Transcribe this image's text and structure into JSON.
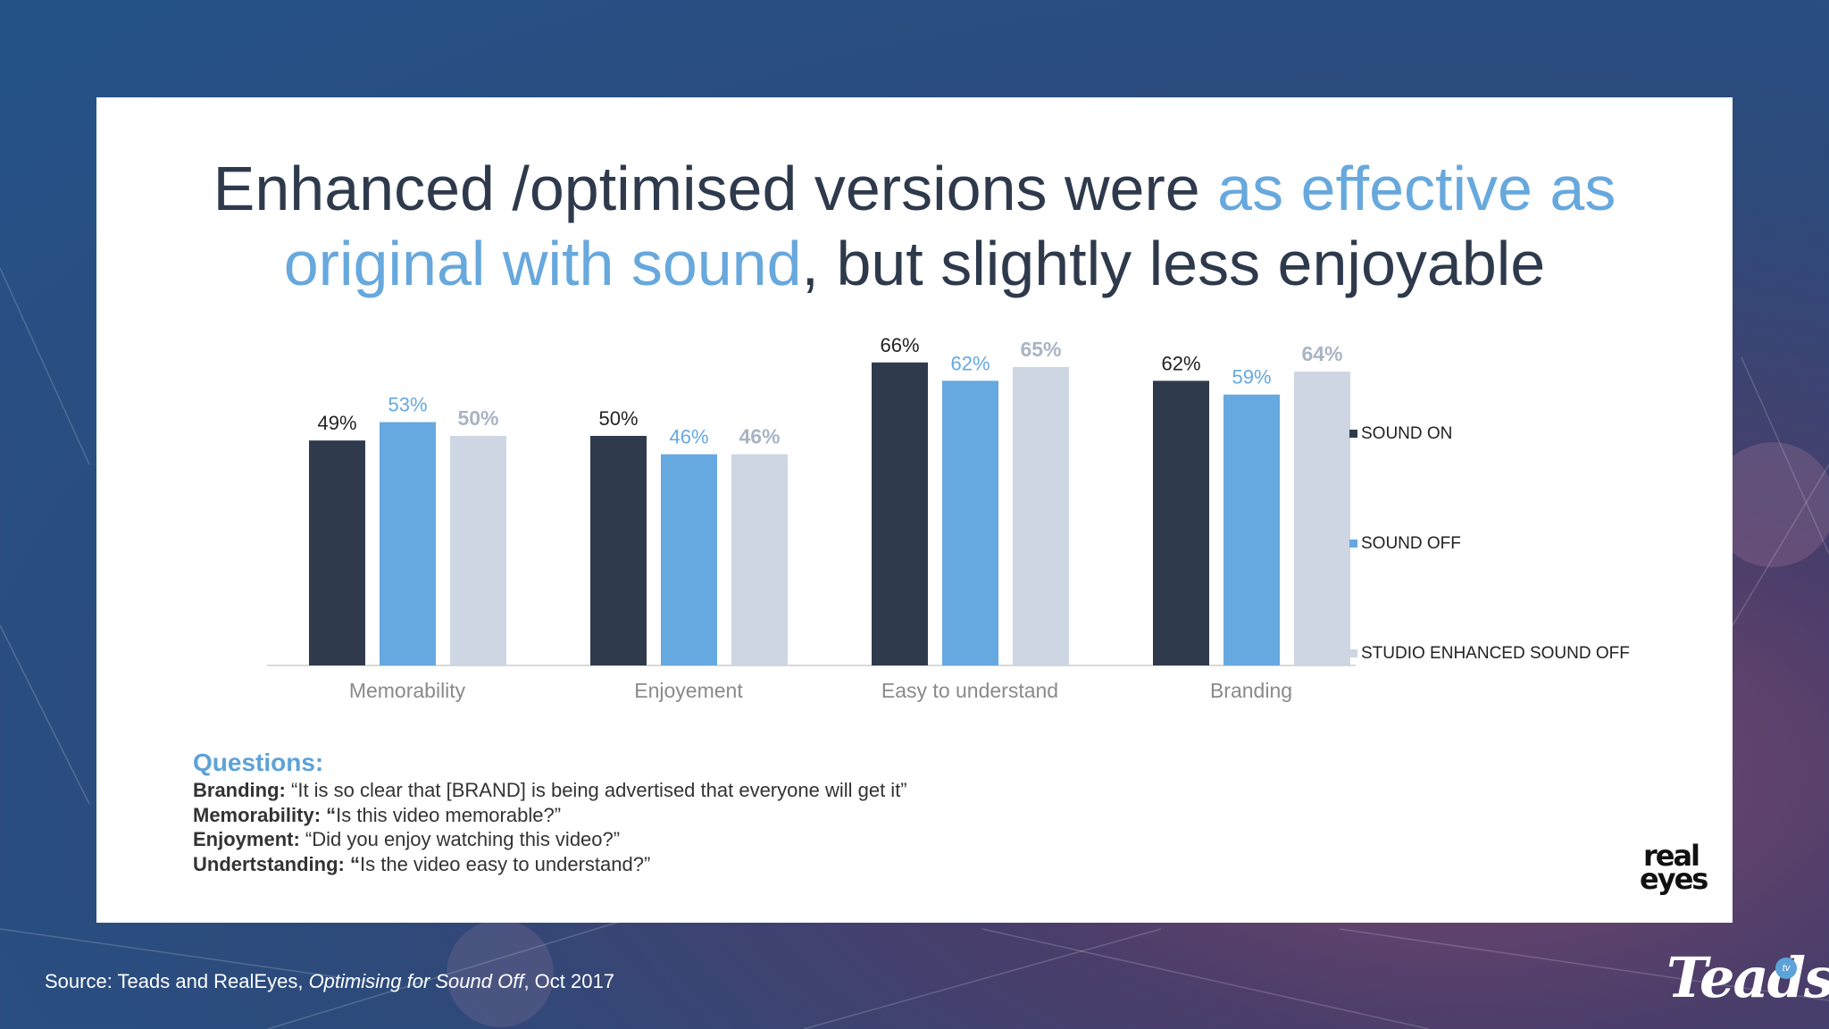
{
  "title": {
    "part1": "Enhanced /optimised versions were ",
    "highlight1": "as effective as",
    "highlight2": "original with sound",
    "part2": ", but slightly less enjoyable"
  },
  "colors": {
    "sound_on": "#2f3b4d",
    "sound_off": "#66a8e0",
    "studio_enhanced": "#cdd6e2",
    "highlight": "#67a8dd"
  },
  "chart_data": {
    "type": "bar",
    "categories": [
      "Memorability",
      "Enjoyement",
      "Easy to understand",
      "Branding"
    ],
    "series": [
      {
        "name": "SOUND ON",
        "values": [
          49,
          50,
          66,
          62
        ],
        "labels": [
          "49%",
          "50%",
          "66%",
          "62%"
        ]
      },
      {
        "name": "SOUND OFF",
        "values": [
          53,
          46,
          62,
          59
        ],
        "labels": [
          "53%",
          "46%",
          "62%",
          "59%"
        ]
      },
      {
        "name": "STUDIO ENHANCED SOUND OFF",
        "values": [
          50,
          46,
          65,
          64
        ],
        "labels": [
          "50%",
          "46%",
          "65%",
          "64%"
        ]
      }
    ],
    "ylim": [
      0,
      100
    ],
    "grid": false,
    "legend": "right"
  },
  "questions": {
    "heading": "Questions:",
    "items": [
      {
        "label": "Branding:",
        "text": " “It is so clear that [BRAND] is being advertised that everyone will get it”"
      },
      {
        "label": "Memorability: “",
        "text": "Is this video memorable?”"
      },
      {
        "label": "Enjoyment:",
        "text": " “Did you enjoy watching this video?”"
      },
      {
        "label": "Undertstanding: “",
        "text": "Is the video easy to understand?”"
      }
    ]
  },
  "logos": {
    "realeyes_top": "real",
    "realeyes_bottom": "eyes",
    "teads": "Teads",
    "teads_badge": "tv"
  },
  "source": {
    "prefix": "Source: Teads and RealEyes, ",
    "title": "Optimising for Sound Off",
    "suffix": ", Oct 2017"
  }
}
